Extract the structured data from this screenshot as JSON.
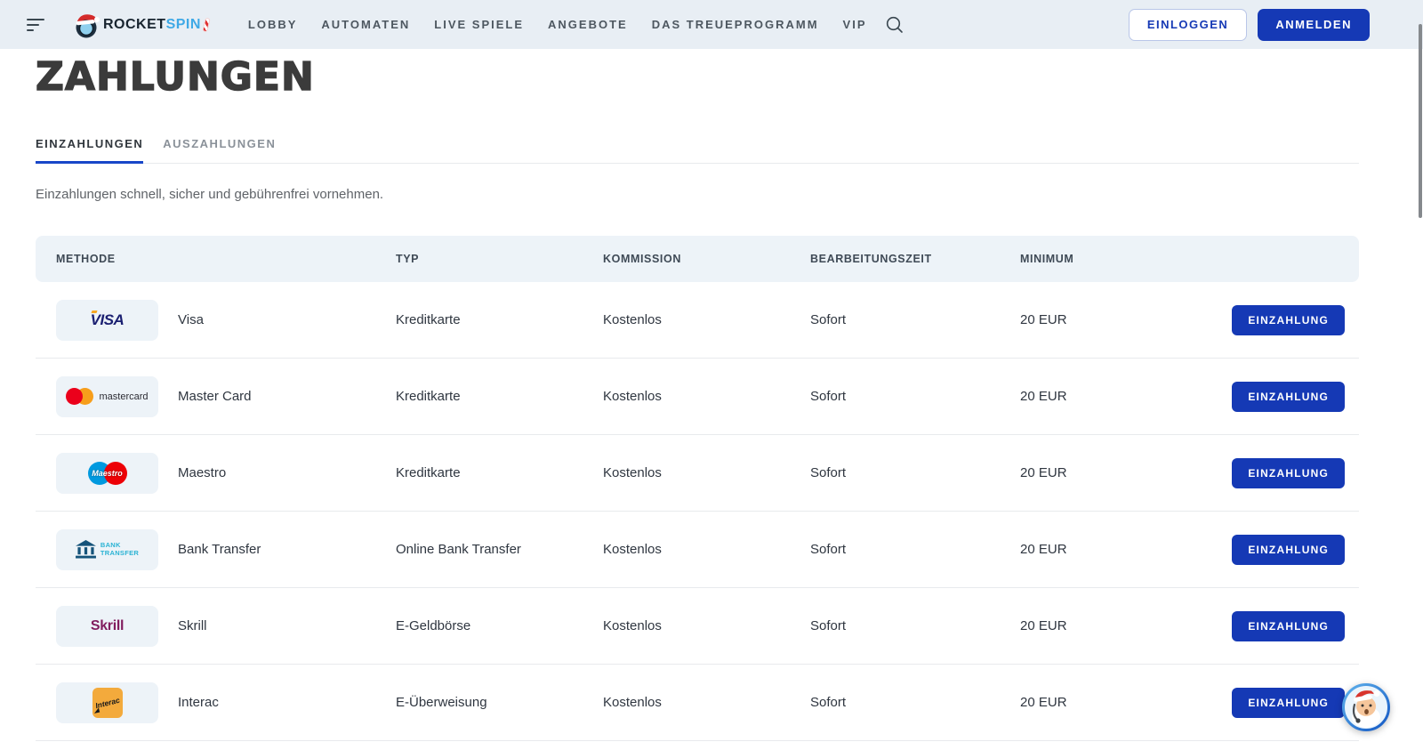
{
  "colors": {
    "accent_blue": "#1539b5",
    "header_bg": "#e8eef4",
    "panel_bg": "#edf3f8",
    "title_color": "#3b3b3b",
    "nav_text": "#4d5760",
    "text_dark": "#2f3640",
    "text_muted": "#5f6368",
    "tab_inactive": "#8a9199",
    "tab_underline": "#1846c8",
    "divider": "#e8eaed",
    "visa_blue": "#1a1f71",
    "visa_gold": "#f7a823",
    "mc_red": "#eb001b",
    "mc_orange": "#f79e1b",
    "maestro_blue": "#0099df",
    "maestro_red": "#ed0006",
    "bank_navy": "#15537a",
    "bank_cyan": "#2bb3d4",
    "skrill_magenta": "#811d5e",
    "interac_yellow": "#f3aa3c"
  },
  "header": {
    "logo_primary": "ROCKET",
    "logo_secondary": "SPIN",
    "nav_items": [
      "LOBBY",
      "AUTOMATEN",
      "LIVE SPIELE",
      "ANGEBOTE",
      "DAS TREUEPROGRAMM",
      "VIP"
    ],
    "login_label": "EINLOGGEN",
    "register_label": "ANMELDEN"
  },
  "page": {
    "title": "ZAHLUNGEN",
    "tabs": [
      {
        "label": "EINZAHLUNGEN",
        "active": true
      },
      {
        "label": "AUSZAHLUNGEN",
        "active": false
      }
    ],
    "subtitle": "Einzahlungen schnell, sicher und gebührenfrei vornehmen."
  },
  "table": {
    "columns": [
      "METHODE",
      "TYP",
      "KOMMISSION",
      "BEARBEITUNGSZEIT",
      "MINIMUM"
    ],
    "action_label": "EINZAHLUNG",
    "rows": [
      {
        "method": "Visa",
        "type": "Kreditkarte",
        "commission": "Kostenlos",
        "processing": "Sofort",
        "minimum": "20 EUR",
        "logo": {
          "kind": "visa",
          "text": "VISA"
        }
      },
      {
        "method": "Master Card",
        "type": "Kreditkarte",
        "commission": "Kostenlos",
        "processing": "Sofort",
        "minimum": "20 EUR",
        "logo": {
          "kind": "mastercard",
          "text": "mastercard"
        }
      },
      {
        "method": "Maestro",
        "type": "Kreditkarte",
        "commission": "Kostenlos",
        "processing": "Sofort",
        "minimum": "20 EUR",
        "logo": {
          "kind": "maestro",
          "text": "Maestro"
        }
      },
      {
        "method": "Bank Transfer",
        "type": "Online Bank Transfer",
        "commission": "Kostenlos",
        "processing": "Sofort",
        "minimum": "20 EUR",
        "logo": {
          "kind": "banktransfer",
          "lines": [
            "BANK",
            "TRANSFER"
          ]
        }
      },
      {
        "method": "Skrill",
        "type": "E-Geldbörse",
        "commission": "Kostenlos",
        "processing": "Sofort",
        "minimum": "20 EUR",
        "logo": {
          "kind": "skrill",
          "text": "Skrill"
        }
      },
      {
        "method": "Interac",
        "type": "E-Überweisung",
        "commission": "Kostenlos",
        "processing": "Sofort",
        "minimum": "20 EUR",
        "logo": {
          "kind": "interac",
          "text": "Interac"
        }
      }
    ]
  }
}
